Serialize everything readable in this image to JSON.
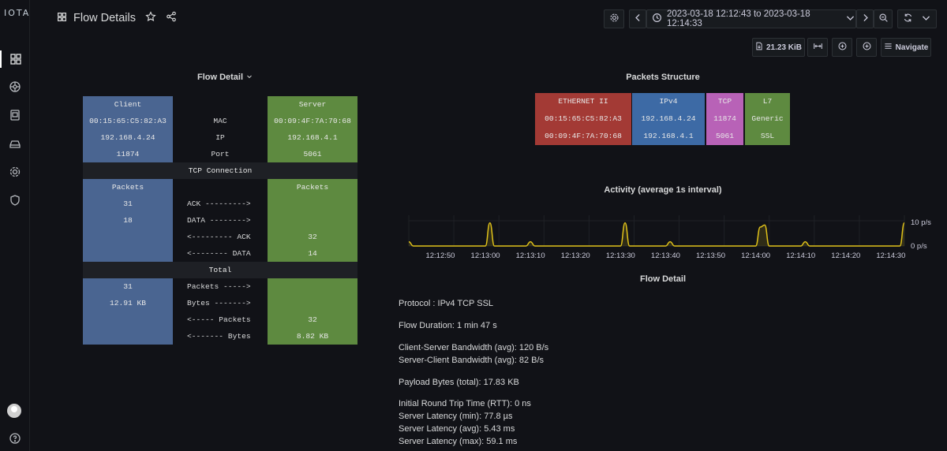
{
  "app": {
    "logo": "IOTA"
  },
  "header": {
    "title": "Flow Details",
    "time_range": "2023-03-18 12:12:43 to 2023-03-18 12:14:33",
    "file_size": "21.23 KiB",
    "navigate_label": "Navigate"
  },
  "flow_detail": {
    "title": "Flow Detail",
    "client_header": "Client",
    "server_header": "Server",
    "rows": [
      {
        "client": "00:15:65:C5:82:A3",
        "label": "MAC",
        "server": "00:09:4F:7A:70:68"
      },
      {
        "client": "192.168.4.24",
        "label": "IP",
        "server": "192.168.4.1"
      },
      {
        "client": "11874",
        "label": "Port",
        "server": "5061"
      }
    ],
    "tcp_section": "TCP Connection",
    "tcp_client_header": "Packets",
    "tcp_server_header": "Packets",
    "tcp_rows": [
      {
        "client": "31",
        "label": "ACK --------->",
        "server": ""
      },
      {
        "client": "18",
        "label": "DATA -------->",
        "server": ""
      },
      {
        "client": "",
        "label": "<--------- ACK",
        "server": "32"
      },
      {
        "client": "",
        "label": "<-------- DATA",
        "server": "14"
      }
    ],
    "total_section": "Total",
    "total_rows": [
      {
        "client": "31",
        "label": "Packets ----->",
        "server": ""
      },
      {
        "client": "12.91 KB",
        "label": "Bytes ------->",
        "server": ""
      },
      {
        "client": "",
        "label": "<----- Packets",
        "server": "32"
      },
      {
        "client": "",
        "label": "<------- Bytes",
        "server": "8.82 KB"
      }
    ]
  },
  "packets_structure": {
    "title": "Packets Structure",
    "columns": [
      {
        "header": "ETHERNET II",
        "row1": "00:15:65:C5:82:A3",
        "row2": "00:09:4F:7A:70:68",
        "color": "#a33a35"
      },
      {
        "header": "IPv4",
        "row1": "192.168.4.24",
        "row2": "192.168.4.1",
        "color": "#3d6aa5"
      },
      {
        "header": "TCP",
        "row1": "11874",
        "row2": "5061",
        "color": "#b862b7"
      },
      {
        "header": "L7",
        "row1": "Generic",
        "row2": "SSL",
        "color": "#5e8a40"
      }
    ]
  },
  "chart_data": {
    "type": "line",
    "title": "Activity (average 1s interval)",
    "x": [
      "12:12:43",
      "12:12:44",
      "12:12:45",
      "12:12:46",
      "12:12:47",
      "12:12:48",
      "12:12:49",
      "12:12:50",
      "12:12:51",
      "12:12:52",
      "12:12:53",
      "12:12:54",
      "12:12:55",
      "12:12:56",
      "12:12:57",
      "12:12:58",
      "12:12:59",
      "12:13:00",
      "12:13:01",
      "12:13:02",
      "12:13:03",
      "12:13:04",
      "12:13:05",
      "12:13:06",
      "12:13:07",
      "12:13:08",
      "12:13:09",
      "12:13:10",
      "12:13:11",
      "12:13:12",
      "12:13:13",
      "12:13:14",
      "12:13:15",
      "12:13:16",
      "12:13:17",
      "12:13:18",
      "12:13:19",
      "12:13:20",
      "12:13:21",
      "12:13:22",
      "12:13:23",
      "12:13:24",
      "12:13:25",
      "12:13:26",
      "12:13:27",
      "12:13:28",
      "12:13:29",
      "12:13:30",
      "12:13:31",
      "12:13:32",
      "12:13:33",
      "12:13:34",
      "12:13:35",
      "12:13:36",
      "12:13:37",
      "12:13:38",
      "12:13:39",
      "12:13:40",
      "12:13:41",
      "12:13:42",
      "12:13:43",
      "12:13:44",
      "12:13:45",
      "12:13:46",
      "12:13:47",
      "12:13:48",
      "12:13:49",
      "12:13:50",
      "12:13:51",
      "12:13:52",
      "12:13:53",
      "12:13:54",
      "12:13:55",
      "12:13:56",
      "12:13:57",
      "12:13:58",
      "12:13:59",
      "12:14:00",
      "12:14:01",
      "12:14:02",
      "12:14:03",
      "12:14:04",
      "12:14:05",
      "12:14:06",
      "12:14:07",
      "12:14:08",
      "12:14:09",
      "12:14:10",
      "12:14:11",
      "12:14:12",
      "12:14:13",
      "12:14:14",
      "12:14:15",
      "12:14:16",
      "12:14:17",
      "12:14:18",
      "12:14:19",
      "12:14:20",
      "12:14:21",
      "12:14:22",
      "12:14:23",
      "12:14:24",
      "12:14:25",
      "12:14:26",
      "12:14:27",
      "12:14:28",
      "12:14:29",
      "12:14:30",
      "12:14:31",
      "12:14:32",
      "12:14:33"
    ],
    "series": [
      {
        "values": [
          2,
          0,
          0,
          0,
          0,
          0,
          0,
          0,
          0,
          0,
          0,
          0,
          0,
          0,
          0,
          0,
          0,
          0,
          11,
          0,
          0,
          0,
          0,
          0,
          0,
          0,
          0,
          2,
          0,
          0,
          0,
          0,
          0,
          0,
          0,
          0,
          0,
          0,
          0,
          0,
          0,
          0,
          0,
          0,
          0,
          0,
          0,
          0,
          11,
          0,
          0,
          0,
          0,
          0,
          0,
          0,
          0,
          0,
          2,
          0,
          0,
          0,
          0,
          0,
          0,
          0,
          0,
          0,
          0,
          0,
          0,
          0,
          0,
          0,
          0,
          0,
          0,
          0,
          9,
          10,
          0,
          0,
          0,
          0,
          0,
          0,
          0,
          0,
          2,
          0,
          0,
          0,
          0,
          0,
          0,
          0,
          0,
          0,
          0,
          0,
          0,
          0,
          0,
          0,
          0,
          0,
          0,
          0,
          0,
          0,
          11
        ]
      }
    ],
    "ytick_labels": [
      "10 p/s",
      "0 p/s"
    ],
    "xtick_labels": [
      "12:12:50",
      "12:13:00",
      "12:13:10",
      "12:13:20",
      "12:13:30",
      "12:13:40",
      "12:13:50",
      "12:14:00",
      "12:14:10",
      "12:14:20",
      "12:14:30"
    ],
    "ylim": [
      0,
      12
    ],
    "line_color": "#e0c21a"
  },
  "flow_summary": {
    "title": "Flow Detail",
    "lines": [
      "Protocol : IPv4 TCP SSL",
      "Flow Duration: 1 min 47 s",
      "Client-Server Bandwidth (avg): 120 B/s",
      "Server-Client Bandwidth (avg): 82 B/s",
      "Payload Bytes (total): 17.83 KB",
      "Initial Round Trip Time (RTT): 0 ns",
      "Server Latency (min): 77.8 µs",
      "Server Latency (avg): 5.43 ms",
      "Server Latency (max): 59.1 ms"
    ]
  }
}
